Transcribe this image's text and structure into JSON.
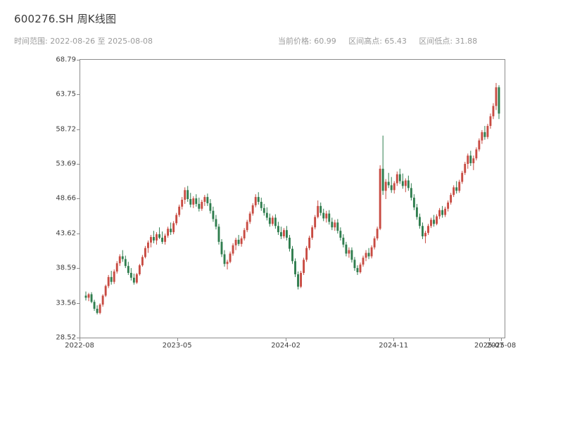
{
  "header": {
    "title": "600276.SH 周K线图",
    "subtitle": "时间范围: 2022-08-26 至 2025-08-08",
    "stats": [
      "当前价格: 60.99",
      "区间高点: 65.43",
      "区间低点: 31.88"
    ]
  },
  "chart_data": {
    "type": "candlestick",
    "title": "600276.SH 周K线图",
    "symbol": "600276.SH",
    "interval": "weekly",
    "date_range": [
      "2022-08-26",
      "2025-08-08"
    ],
    "current_price": 60.99,
    "range_high": 65.43,
    "range_low": 31.88,
    "ylim": [
      28.52,
      68.79
    ],
    "y_ticks": [
      28.52,
      33.56,
      38.59,
      43.62,
      48.66,
      53.69,
      58.72,
      63.75,
      68.79
    ],
    "x_ticks": [
      {
        "label": "2022-08",
        "pos": 0.0
      },
      {
        "label": "2023-05",
        "pos": 0.23
      },
      {
        "label": "2024-02",
        "pos": 0.486
      },
      {
        "label": "2024-11",
        "pos": 0.74
      },
      {
        "label": "2025-07",
        "pos": 0.965
      },
      {
        "label": "2025-08",
        "pos": 0.994
      }
    ],
    "colors": {
      "up": "#c84b42",
      "down": "#2f7d4e"
    },
    "grid": false,
    "legend": "none",
    "candles_format": [
      "open",
      "high",
      "low",
      "close"
    ],
    "candles": [
      [
        34.6,
        35.2,
        33.9,
        34.3
      ],
      [
        34.3,
        35.0,
        33.8,
        34.8
      ],
      [
        34.8,
        35.1,
        33.5,
        33.7
      ],
      [
        33.7,
        34.0,
        32.4,
        32.7
      ],
      [
        32.7,
        33.2,
        31.88,
        32.1
      ],
      [
        32.1,
        33.5,
        31.9,
        33.3
      ],
      [
        33.3,
        34.8,
        33.0,
        34.6
      ],
      [
        34.6,
        36.2,
        34.4,
        36.0
      ],
      [
        36.0,
        37.6,
        35.7,
        37.3
      ],
      [
        37.3,
        38.2,
        36.2,
        36.6
      ],
      [
        36.6,
        38.4,
        36.3,
        38.1
      ],
      [
        38.1,
        39.6,
        37.8,
        39.3
      ],
      [
        39.3,
        40.6,
        38.9,
        40.3
      ],
      [
        40.3,
        41.2,
        39.5,
        39.9
      ],
      [
        39.9,
        40.4,
        38.6,
        38.9
      ],
      [
        38.9,
        39.5,
        37.6,
        37.9
      ],
      [
        37.9,
        38.6,
        36.8,
        37.2
      ],
      [
        37.2,
        37.8,
        36.2,
        36.5
      ],
      [
        36.5,
        37.9,
        36.3,
        37.7
      ],
      [
        37.7,
        39.2,
        37.5,
        39.0
      ],
      [
        39.0,
        40.5,
        38.8,
        40.2
      ],
      [
        40.2,
        41.8,
        40.0,
        41.5
      ],
      [
        41.5,
        42.6,
        40.8,
        42.3
      ],
      [
        42.3,
        43.4,
        41.6,
        43.1
      ],
      [
        43.1,
        44.0,
        42.2,
        42.6
      ],
      [
        42.6,
        43.8,
        42.0,
        43.5
      ],
      [
        43.5,
        44.5,
        42.8,
        43.0
      ],
      [
        43.0,
        43.9,
        42.1,
        42.4
      ],
      [
        42.4,
        43.6,
        42.0,
        43.3
      ],
      [
        43.3,
        44.6,
        43.0,
        44.3
      ],
      [
        44.3,
        45.2,
        43.4,
        43.8
      ],
      [
        43.8,
        45.4,
        43.5,
        45.1
      ],
      [
        45.1,
        46.6,
        44.8,
        46.3
      ],
      [
        46.3,
        47.8,
        46.0,
        47.5
      ],
      [
        47.5,
        48.9,
        47.1,
        48.5
      ],
      [
        48.5,
        50.3,
        47.9,
        49.9
      ],
      [
        49.9,
        50.5,
        48.2,
        48.6
      ],
      [
        48.6,
        49.5,
        47.4,
        47.8
      ],
      [
        47.8,
        49.0,
        47.3,
        48.7
      ],
      [
        48.7,
        49.3,
        47.5,
        47.9
      ],
      [
        47.9,
        48.8,
        46.8,
        47.2
      ],
      [
        47.2,
        48.5,
        46.9,
        48.2
      ],
      [
        48.2,
        49.2,
        47.6,
        48.9
      ],
      [
        48.9,
        49.4,
        47.6,
        48.0
      ],
      [
        48.0,
        48.6,
        46.5,
        46.9
      ],
      [
        46.9,
        47.5,
        45.3,
        45.7
      ],
      [
        45.7,
        46.3,
        44.2,
        44.6
      ],
      [
        44.6,
        45.0,
        42.0,
        42.4
      ],
      [
        42.4,
        42.8,
        40.2,
        40.6
      ],
      [
        40.6,
        41.2,
        38.8,
        39.2
      ],
      [
        39.2,
        39.8,
        38.4,
        39.5
      ],
      [
        39.5,
        41.0,
        39.3,
        40.7
      ],
      [
        40.7,
        42.2,
        40.4,
        41.9
      ],
      [
        41.9,
        43.0,
        41.2,
        42.7
      ],
      [
        42.7,
        43.4,
        41.8,
        42.1
      ],
      [
        42.1,
        43.2,
        41.7,
        42.9
      ],
      [
        42.9,
        44.4,
        42.6,
        44.1
      ],
      [
        44.1,
        45.6,
        43.8,
        45.3
      ],
      [
        45.3,
        46.8,
        45.0,
        46.5
      ],
      [
        46.5,
        48.0,
        46.2,
        47.7
      ],
      [
        47.7,
        49.3,
        47.4,
        48.9
      ],
      [
        48.9,
        49.6,
        47.8,
        48.2
      ],
      [
        48.2,
        48.8,
        46.9,
        47.3
      ],
      [
        47.3,
        47.9,
        46.2,
        46.6
      ],
      [
        46.6,
        47.4,
        45.5,
        45.9
      ],
      [
        45.9,
        46.5,
        44.6,
        45.0
      ],
      [
        45.0,
        46.2,
        44.7,
        45.9
      ],
      [
        45.9,
        46.4,
        44.3,
        44.7
      ],
      [
        44.7,
        45.3,
        43.4,
        43.8
      ],
      [
        43.8,
        44.6,
        42.8,
        43.2
      ],
      [
        43.2,
        44.4,
        42.9,
        44.1
      ],
      [
        44.1,
        44.7,
        42.6,
        43.0
      ],
      [
        43.0,
        43.4,
        41.0,
        41.4
      ],
      [
        41.4,
        41.8,
        39.2,
        39.6
      ],
      [
        39.6,
        40.0,
        37.3,
        37.7
      ],
      [
        37.7,
        38.1,
        35.5,
        35.9
      ],
      [
        35.9,
        38.2,
        35.7,
        37.9
      ],
      [
        37.9,
        40.1,
        37.6,
        39.8
      ],
      [
        39.8,
        41.8,
        39.5,
        41.5
      ],
      [
        41.5,
        43.3,
        41.2,
        43.0
      ],
      [
        43.0,
        44.8,
        42.7,
        44.5
      ],
      [
        44.5,
        46.3,
        44.2,
        46.0
      ],
      [
        46.0,
        48.4,
        45.8,
        47.6
      ],
      [
        47.6,
        48.1,
        46.2,
        46.6
      ],
      [
        46.6,
        47.2,
        45.4,
        45.8
      ],
      [
        45.8,
        46.9,
        45.2,
        46.5
      ],
      [
        46.5,
        47.0,
        44.9,
        45.3
      ],
      [
        45.3,
        45.9,
        44.1,
        44.5
      ],
      [
        44.5,
        45.6,
        44.0,
        45.2
      ],
      [
        45.2,
        45.7,
        43.6,
        44.0
      ],
      [
        44.0,
        44.5,
        42.6,
        43.0
      ],
      [
        43.0,
        43.5,
        41.6,
        42.0
      ],
      [
        42.0,
        42.4,
        40.3,
        40.7
      ],
      [
        40.7,
        41.6,
        40.1,
        41.2
      ],
      [
        41.2,
        41.6,
        39.4,
        39.8
      ],
      [
        39.8,
        40.2,
        38.2,
        38.6
      ],
      [
        38.6,
        39.0,
        37.6,
        38.0
      ],
      [
        38.0,
        39.4,
        37.8,
        39.1
      ],
      [
        39.1,
        40.4,
        38.8,
        40.1
      ],
      [
        40.1,
        41.2,
        39.6,
        40.8
      ],
      [
        40.8,
        41.5,
        39.9,
        40.3
      ],
      [
        40.3,
        41.9,
        40.0,
        41.6
      ],
      [
        41.6,
        43.2,
        41.3,
        42.9
      ],
      [
        42.9,
        44.6,
        42.6,
        44.3
      ],
      [
        44.3,
        53.5,
        44.1,
        53.0
      ],
      [
        53.0,
        57.8,
        49.2,
        49.8
      ],
      [
        49.8,
        51.5,
        48.6,
        51.1
      ],
      [
        51.1,
        52.4,
        50.2,
        50.6
      ],
      [
        50.6,
        51.8,
        49.5,
        49.9
      ],
      [
        49.9,
        51.2,
        49.4,
        50.9
      ],
      [
        50.9,
        52.6,
        50.5,
        52.2
      ],
      [
        52.2,
        53.0,
        50.8,
        51.2
      ],
      [
        51.2,
        52.3,
        50.1,
        50.5
      ],
      [
        50.5,
        51.6,
        49.6,
        51.3
      ],
      [
        51.3,
        52.0,
        49.8,
        50.2
      ],
      [
        50.2,
        50.9,
        48.4,
        48.8
      ],
      [
        48.8,
        49.3,
        47.0,
        47.4
      ],
      [
        47.4,
        47.9,
        45.6,
        46.0
      ],
      [
        46.0,
        46.5,
        44.3,
        44.7
      ],
      [
        44.7,
        45.2,
        42.8,
        43.2
      ],
      [
        43.2,
        44.0,
        42.2,
        43.7
      ],
      [
        43.7,
        45.0,
        43.4,
        44.7
      ],
      [
        44.7,
        45.9,
        44.4,
        45.6
      ],
      [
        45.6,
        46.3,
        44.6,
        45.0
      ],
      [
        45.0,
        46.4,
        44.8,
        46.1
      ],
      [
        46.1,
        47.3,
        45.7,
        47.0
      ],
      [
        47.0,
        47.6,
        45.9,
        46.3
      ],
      [
        46.3,
        47.5,
        46.0,
        47.2
      ],
      [
        47.2,
        48.4,
        46.8,
        48.1
      ],
      [
        48.1,
        49.5,
        47.8,
        49.2
      ],
      [
        49.2,
        50.6,
        48.9,
        50.3
      ],
      [
        50.3,
        51.2,
        49.4,
        49.8
      ],
      [
        49.8,
        51.4,
        49.5,
        51.1
      ],
      [
        51.1,
        52.7,
        50.8,
        52.4
      ],
      [
        52.4,
        54.0,
        52.1,
        53.7
      ],
      [
        53.7,
        55.2,
        53.0,
        54.9
      ],
      [
        54.9,
        55.6,
        53.4,
        53.8
      ],
      [
        53.8,
        54.9,
        52.8,
        54.5
      ],
      [
        54.5,
        56.1,
        54.2,
        55.8
      ],
      [
        55.8,
        57.4,
        55.5,
        57.1
      ],
      [
        57.1,
        58.6,
        56.6,
        58.3
      ],
      [
        58.3,
        59.2,
        57.2,
        57.6
      ],
      [
        57.6,
        59.5,
        57.3,
        59.2
      ],
      [
        59.2,
        61.0,
        58.8,
        60.6
      ],
      [
        60.6,
        62.5,
        60.2,
        62.1
      ],
      [
        62.1,
        65.43,
        61.5,
        64.8
      ],
      [
        64.8,
        65.1,
        60.2,
        60.99
      ]
    ]
  }
}
